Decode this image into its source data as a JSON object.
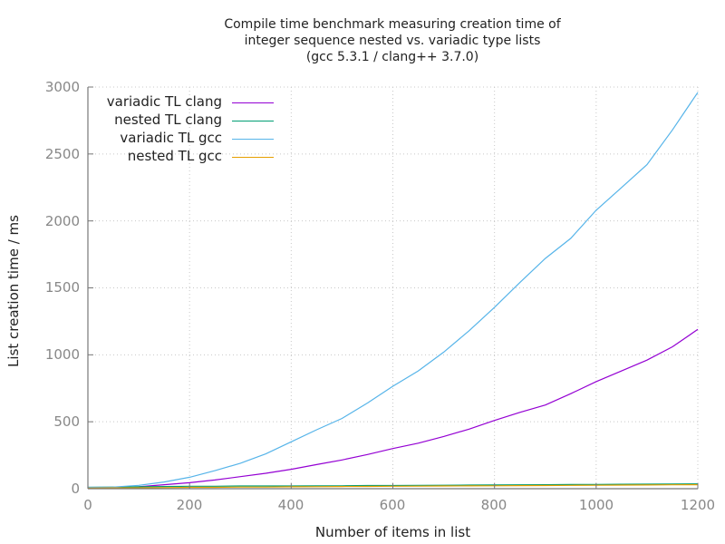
{
  "chart_data": {
    "type": "line",
    "title": "Compile time benchmark measuring creation time of integer sequence nested vs. variadic type lists (gcc 5.3.1 / clang++ 3.7.0)",
    "title_lines": [
      "Compile time benchmark measuring creation time of",
      "integer sequence nested vs. variadic type lists",
      "(gcc 5.3.1 / clang++ 3.7.0)"
    ],
    "xlabel": "Number of items in list",
    "ylabel": "List creation time / ms",
    "xlim": [
      0,
      1200
    ],
    "ylim": [
      0,
      3000
    ],
    "xticks": [
      "0",
      "200",
      "400",
      "600",
      "800",
      "1000",
      "1200"
    ],
    "yticks": [
      "0",
      "500",
      "1000",
      "1500",
      "2000",
      "2500",
      "3000"
    ],
    "grid": true,
    "legend_position": "top-left",
    "x": [
      0,
      50,
      100,
      150,
      200,
      250,
      300,
      350,
      400,
      450,
      500,
      550,
      600,
      650,
      700,
      750,
      800,
      850,
      900,
      950,
      1000,
      1050,
      1100,
      1150,
      1200
    ],
    "series": [
      {
        "name": "variadic TL clang",
        "color": "#9400d3",
        "values": [
          5,
          8,
          15,
          30,
          45,
          65,
          90,
          115,
          145,
          180,
          215,
          255,
          300,
          340,
          390,
          445,
          510,
          570,
          625,
          710,
          800,
          880,
          960,
          1060,
          1190
        ]
      },
      {
        "name": "nested TL clang",
        "color": "#009e73",
        "values": [
          10,
          12,
          14,
          16,
          18,
          18,
          20,
          20,
          20,
          22,
          22,
          24,
          24,
          25,
          26,
          27,
          28,
          29,
          30,
          31,
          32,
          33,
          34,
          35,
          36
        ]
      },
      {
        "name": "variadic TL gcc",
        "color": "#56b4e9",
        "values": [
          10,
          12,
          25,
          50,
          85,
          135,
          190,
          260,
          350,
          440,
          525,
          640,
          765,
          880,
          1020,
          1180,
          1355,
          1540,
          1720,
          1870,
          2080,
          2250,
          2420,
          2680,
          2960
        ]
      },
      {
        "name": "nested TL gcc",
        "color": "#e69f00",
        "values": [
          5,
          6,
          7,
          8,
          10,
          10,
          12,
          12,
          14,
          15,
          16,
          17,
          18,
          19,
          20,
          21,
          22,
          23,
          24,
          25,
          26,
          27,
          28,
          29,
          30
        ]
      }
    ]
  },
  "plot": {
    "title_lines": [
      "Compile time benchmark measuring creation time of",
      "integer sequence nested vs. variadic type lists",
      "(gcc 5.3.1 / clang++ 3.7.0)"
    ],
    "xlabel": "Number of items in list",
    "ylabel": "List creation time / ms",
    "xticks": [
      "0",
      "200",
      "400",
      "600",
      "800",
      "1000",
      "1200"
    ],
    "yticks": [
      "0",
      "500",
      "1000",
      "1500",
      "2000",
      "2500",
      "3000"
    ],
    "legend": [
      {
        "label": "variadic TL clang",
        "color": "#9400d3"
      },
      {
        "label": "nested TL clang",
        "color": "#009e73"
      },
      {
        "label": "variadic TL gcc",
        "color": "#56b4e9"
      },
      {
        "label": "nested TL gcc",
        "color": "#e69f00"
      }
    ]
  }
}
